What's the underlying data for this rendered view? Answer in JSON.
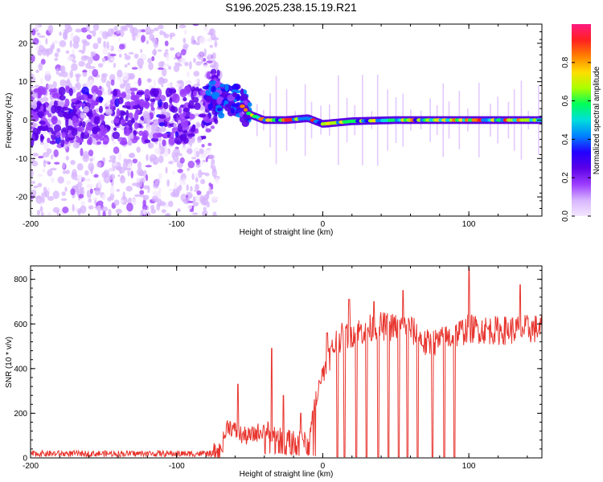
{
  "title": "S196.2025.238.15.19.R21",
  "chart_data": [
    {
      "type": "heatmap",
      "xlabel": "Height of straight line (km)",
      "ylabel": "Frequency (Hz)",
      "xlim": [
        -200,
        150
      ],
      "ylim": [
        -25,
        25
      ],
      "xticks": [
        -200,
        -100,
        0,
        100
      ],
      "xtick_labels": [
        "-200",
        "-100",
        "0",
        "100"
      ],
      "yticks": [
        -20,
        -10,
        0,
        10,
        20
      ],
      "ytick_labels": [
        "-20",
        "-10",
        "0",
        "10",
        "20"
      ],
      "colorbar": {
        "label": "Normalized spectral amplitude",
        "range": [
          0,
          1
        ],
        "ticks": [
          0.0,
          0.2,
          0.4,
          0.6,
          0.8
        ],
        "tick_labels": [
          "0.0",
          "0.2",
          "0.4",
          "0.6",
          "0.8"
        ],
        "colormap": [
          "#f4e8ff",
          "#d7b4ff",
          "#9b3cff",
          "#5a00e6",
          "#2200ff",
          "#0080ff",
          "#00dddd",
          "#00ff5a",
          "#aaff00",
          "#ffdd00",
          "#ff8000",
          "#ff2020",
          "#ff1a80"
        ]
      },
      "ridge": {
        "x": [
          -200,
          -150,
          -100,
          -80,
          -76,
          -70,
          -62,
          -56,
          -50,
          -40,
          -25,
          -10,
          0,
          20,
          50,
          100,
          150
        ],
        "freq": [
          1,
          1,
          1,
          2,
          7,
          5,
          6,
          4,
          1.5,
          0,
          0,
          0.5,
          -1,
          -0.3,
          0,
          0,
          0
        ]
      }
    },
    {
      "type": "line",
      "xlabel": "Height of straight line (km)",
      "ylabel": "SNR (10 * v/v)",
      "xlim": [
        -200,
        150
      ],
      "ylim": [
        0,
        860
      ],
      "xticks": [
        -200,
        -100,
        0,
        100
      ],
      "xtick_labels": [
        "-200",
        "-100",
        "0",
        "100"
      ],
      "yticks": [
        0,
        200,
        400,
        600,
        800
      ],
      "ytick_labels": [
        "0",
        "200",
        "400",
        "600",
        "800"
      ],
      "color": "#e8352e",
      "envelope": {
        "x": [
          -200,
          -80,
          -70,
          -65,
          -60,
          -55,
          -50,
          -40,
          -30,
          -20,
          -10,
          -5,
          0,
          5,
          10,
          20,
          40,
          60,
          70,
          80,
          100,
          120,
          150
        ],
        "y": [
          18,
          18,
          30,
          150,
          120,
          100,
          95,
          130,
          95,
          80,
          75,
          260,
          380,
          460,
          530,
          560,
          590,
          580,
          510,
          520,
          580,
          570,
          580
        ]
      },
      "dropouts_x": [
        10,
        15,
        23,
        30,
        38,
        45,
        52,
        58,
        65,
        75,
        83,
        90
      ],
      "spikes": [
        {
          "x": -58,
          "y": 330
        },
        {
          "x": -35,
          "y": 490
        },
        {
          "x": -27,
          "y": 280
        },
        {
          "x": -15,
          "y": 200
        },
        {
          "x": -2,
          "y": 340
        },
        {
          "x": 3,
          "y": 560
        },
        {
          "x": 18,
          "y": 710
        },
        {
          "x": 35,
          "y": 700
        },
        {
          "x": 55,
          "y": 750
        },
        {
          "x": 90,
          "y": 845
        },
        {
          "x": 100,
          "y": 850
        },
        {
          "x": 135,
          "y": 775
        }
      ]
    }
  ]
}
